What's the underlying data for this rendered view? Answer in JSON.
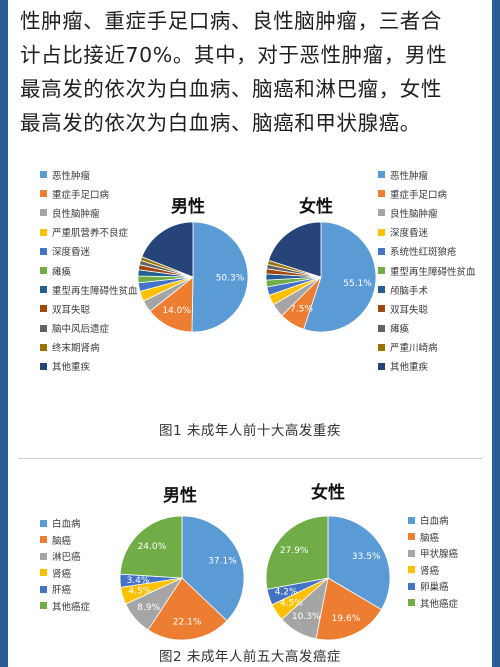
{
  "intro": {
    "lines": [
      "性肿瘤、重症手足口病、良性脑肿瘤，三者合",
      "计占比接近70%。其中，对于恶性肿瘤，男性",
      "最高发的依次为白血病、脑癌和淋巴瘤，女性",
      "最高发的依次为白血病、脑癌和甲状腺癌。"
    ]
  },
  "figure1": {
    "caption": "图1  未成年人前十大高发重疾",
    "male_title": "男性",
    "female_title": "女性",
    "male_legend": [
      "恶性肿瘤",
      "重症手足口病",
      "良性脑肿瘤",
      "严重肌营养不良症",
      "深度昏迷",
      "瘫痪",
      "重型再生障碍性贫血",
      "双耳失聪",
      "脑中风后遗症",
      "终末期肾病",
      "其他重疾"
    ],
    "female_legend": [
      "恶性肿瘤",
      "重症手足口病",
      "良性脑肿瘤",
      "深度昏迷",
      "系统性红斑狼疮",
      "重型再生障碍性贫血",
      "颅脑手术",
      "双耳失聪",
      "瘫痪",
      "严重川崎病",
      "其他重疾"
    ]
  },
  "figure2": {
    "caption": "图2  未成年人前五大高发癌症",
    "male_title": "男性",
    "female_title": "女性",
    "male_legend": [
      "白血病",
      "脑癌",
      "淋巴癌",
      "肾癌",
      "肝癌",
      "其他癌症"
    ],
    "female_legend": [
      "白血病",
      "脑癌",
      "甲状腺癌",
      "肾癌",
      "卵巢癌",
      "其他癌症"
    ]
  },
  "chart_data": [
    {
      "type": "pie",
      "title": "男性",
      "categories": [
        "恶性肿瘤",
        "重症手足口病",
        "良性脑肿瘤",
        "严重肌营养不良症",
        "深度昏迷",
        "瘫痪",
        "重型再生障碍性贫血",
        "双耳失聪",
        "脑中风后遗症",
        "终末期肾病",
        "其他重疾"
      ],
      "values": [
        50.3,
        14.0,
        3.5,
        3.0,
        2.5,
        2.0,
        1.8,
        1.5,
        1.3,
        1.1,
        19.0
      ],
      "labels": [
        "50.3%",
        "14.0%",
        "",
        "",
        "",
        "",
        "",
        "",
        "",
        "",
        ""
      ],
      "colors": [
        "#5b9bd5",
        "#ed7d31",
        "#a5a5a5",
        "#ffc000",
        "#4472c4",
        "#70ad47",
        "#255e91",
        "#9e480e",
        "#636363",
        "#997300",
        "#264478"
      ]
    },
    {
      "type": "pie",
      "title": "女性",
      "categories": [
        "恶性肿瘤",
        "重症手足口病",
        "良性脑肿瘤",
        "深度昏迷",
        "系统性红斑狼疮",
        "重型再生障碍性贫血",
        "颅脑手术",
        "双耳失聪",
        "瘫痪",
        "严重川崎病",
        "其他重疾"
      ],
      "values": [
        55.1,
        7.5,
        4.0,
        3.0,
        2.5,
        2.0,
        1.8,
        1.5,
        1.3,
        1.2,
        20.1
      ],
      "labels": [
        "55.1%",
        "7.5%",
        "",
        "",
        "",
        "",
        "",
        "",
        "",
        "",
        ""
      ],
      "colors": [
        "#5b9bd5",
        "#ed7d31",
        "#a5a5a5",
        "#ffc000",
        "#4472c4",
        "#70ad47",
        "#255e91",
        "#9e480e",
        "#636363",
        "#997300",
        "#264478"
      ]
    },
    {
      "type": "pie",
      "title": "男性",
      "categories": [
        "白血病",
        "脑癌",
        "淋巴癌",
        "肾癌",
        "肝癌",
        "其他癌症"
      ],
      "values": [
        37.1,
        22.1,
        8.9,
        4.5,
        3.4,
        24.0
      ],
      "labels": [
        "37.1%",
        "22.1%",
        "8.9%",
        "4.5%",
        "3.4%",
        "24.0%"
      ],
      "colors": [
        "#5b9bd5",
        "#ed7d31",
        "#a5a5a5",
        "#ffc000",
        "#4472c4",
        "#70ad47"
      ]
    },
    {
      "type": "pie",
      "title": "女性",
      "categories": [
        "白血病",
        "脑癌",
        "甲状腺癌",
        "肾癌",
        "卵巢癌",
        "其他癌症"
      ],
      "values": [
        33.5,
        19.6,
        10.3,
        4.5,
        4.2,
        27.9
      ],
      "labels": [
        "33.5%",
        "19.6%",
        "10.3%",
        "4.5%",
        "4.2%",
        "27.9%"
      ],
      "colors": [
        "#5b9bd5",
        "#ed7d31",
        "#a5a5a5",
        "#ffc000",
        "#4472c4",
        "#70ad47"
      ]
    }
  ]
}
